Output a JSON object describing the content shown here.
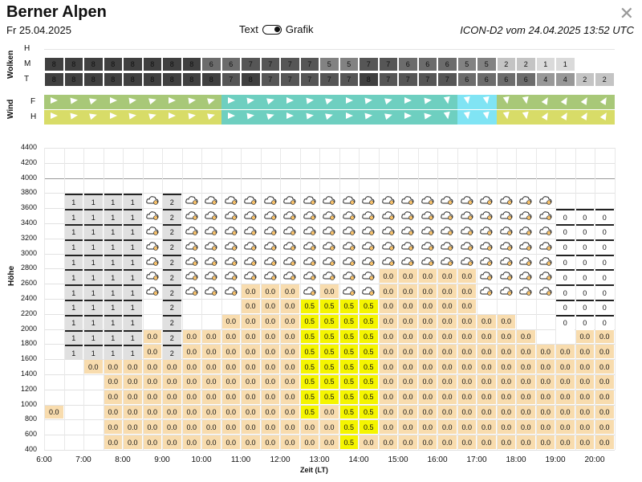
{
  "header": {
    "title": "Berner Alpen",
    "date": "Fr 25.04.2025",
    "model": "ICON-D2 vom 24.04.2025 13:52 UTC",
    "toggle_left": "Text",
    "toggle_right": "Grafik",
    "close_icon": "close-icon"
  },
  "labels": {
    "wolken": "Wolken",
    "wind": "Wind",
    "hoehe": "Höhe",
    "zeit": "Zeit (LT)",
    "cloud_rows": [
      "H",
      "M",
      "T"
    ],
    "wind_rows": [
      "F",
      "H"
    ]
  },
  "x_ticks": [
    "6:00",
    "7:00",
    "8:00",
    "9:00",
    "10:00",
    "11:00",
    "12:00",
    "13:00",
    "14:00",
    "15:00",
    "16:00",
    "17:00",
    "18:00",
    "19:00",
    "20:00"
  ],
  "y_ticks": [
    "4400",
    "4200",
    "4000",
    "3800",
    "3600",
    "3400",
    "3200",
    "3000",
    "2800",
    "2600",
    "2400",
    "2200",
    "2000",
    "1800",
    "1600",
    "1400",
    "1200",
    "1000",
    "800",
    "600",
    "400"
  ],
  "clouds": {
    "M": [
      "8",
      "8",
      "8",
      "8",
      "8",
      "8",
      "8",
      "8",
      "6",
      "6",
      "7",
      "7",
      "7",
      "7",
      "5",
      "5",
      "7",
      "7",
      "6",
      "6",
      "6",
      "5",
      "5",
      "2",
      "2",
      "1",
      "1",
      ""
    ],
    "T": [
      "8",
      "8",
      "8",
      "8",
      "8",
      "8",
      "8",
      "8",
      "8",
      "7",
      "8",
      "7",
      "7",
      "7",
      "7",
      "7",
      "8",
      "7",
      "7",
      "7",
      "7",
      "6",
      "6",
      "6",
      "6",
      "4",
      "4",
      "2",
      "2"
    ]
  },
  "colors": {
    "precip_zero": "#f8dcae",
    "precip_half": "#f5f500",
    "wind_green": "#a8c878",
    "wind_teal": "#6ecfc0",
    "wind_cyan": "#80e4f4",
    "wind_yellow": "#d8dc68"
  },
  "chart_data": {
    "type": "heatmap",
    "xlabel": "Zeit (LT)",
    "ylabel": "Höhe",
    "x_ticks": [
      "6:00",
      "7:00",
      "8:00",
      "9:00",
      "10:00",
      "11:00",
      "12:00",
      "13:00",
      "14:00",
      "15:00",
      "16:00",
      "17:00",
      "18:00",
      "19:00",
      "20:00"
    ],
    "ylim": [
      400,
      4400
    ],
    "notes_values": [
      "0.0",
      "0.5",
      "1",
      "2",
      "0"
    ]
  }
}
